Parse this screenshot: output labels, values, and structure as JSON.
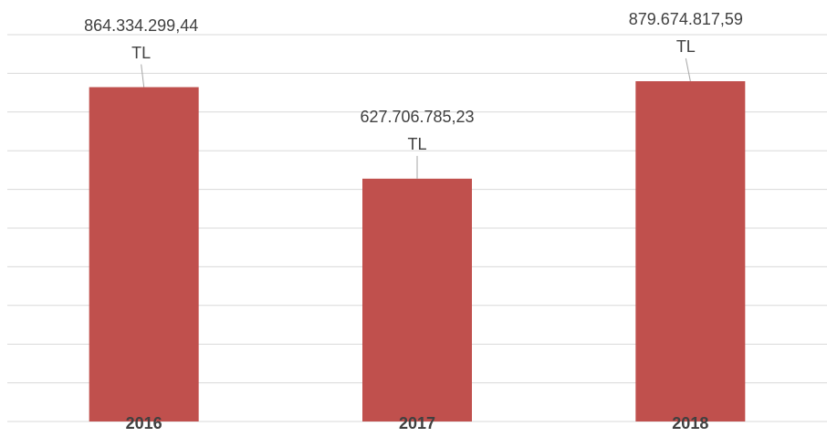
{
  "chart_data": {
    "type": "bar",
    "categories": [
      "2016",
      "2017",
      "2018"
    ],
    "values": [
      864334299.44,
      627706785.23,
      879674817.59
    ],
    "value_labels": [
      "864.334.299,44 TL",
      "627.706.785,23 TL",
      "879.674.817,59 TL"
    ],
    "color": "#c0504d",
    "ylim": [
      0,
      1000000000
    ],
    "yticks": [
      0,
      100000000,
      200000000,
      300000000,
      400000000,
      500000000,
      600000000,
      700000000,
      800000000,
      900000000,
      1000000000
    ],
    "ytick_labels": false,
    "grid": true
  }
}
